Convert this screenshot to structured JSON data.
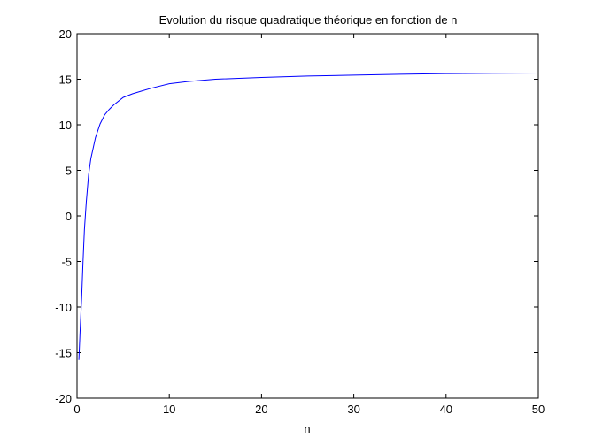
{
  "chart_data": {
    "type": "line",
    "title": "Evolution du risque quadratique théorique en fonction de n",
    "xlabel": "n",
    "ylabel": "",
    "xlim": [
      0,
      50
    ],
    "ylim": [
      -20,
      20
    ],
    "x_ticks": [
      0,
      10,
      20,
      30,
      40,
      50
    ],
    "y_ticks": [
      -20,
      -15,
      -10,
      -5,
      0,
      5,
      10,
      15,
      20
    ],
    "grid": false,
    "series": [
      {
        "color": "#0000ff",
        "x": [
          0.2,
          0.35,
          0.5,
          0.65,
          0.8,
          1,
          1.25,
          1.5,
          2,
          2.5,
          3,
          3.5,
          4,
          5,
          6,
          7,
          8,
          10,
          12,
          15,
          20,
          25,
          30,
          35,
          40,
          45,
          50
        ],
        "y": [
          -15.8,
          -12.2,
          -9,
          -5,
          -1.5,
          1.5,
          4.5,
          6.3,
          8.6,
          10.1,
          11.1,
          11.7,
          12.2,
          13,
          13.4,
          13.7,
          14,
          14.5,
          14.75,
          15,
          15.2,
          15.35,
          15.45,
          15.55,
          15.62,
          15.65,
          15.68
        ]
      }
    ]
  }
}
